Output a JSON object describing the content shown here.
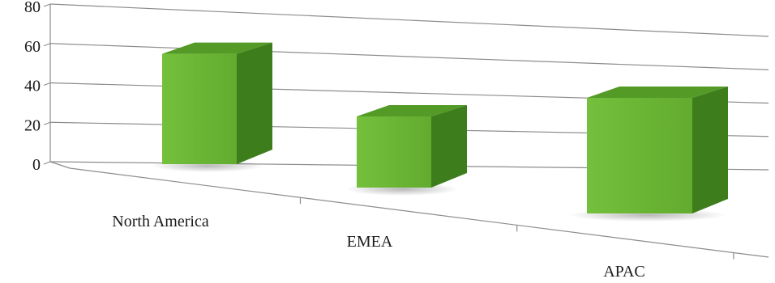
{
  "chart_data": {
    "type": "bar",
    "style": "3d-perspective",
    "categories": [
      "North America",
      "EMEA",
      "APAC"
    ],
    "values": [
      62,
      40,
      65
    ],
    "ylim": [
      0,
      80
    ],
    "yticks": [
      "0",
      "20",
      "40",
      "60",
      "80"
    ],
    "grid": true,
    "legend": "none",
    "title": "",
    "xlabel": "",
    "ylabel": "",
    "colors": {
      "front": "#6ab534",
      "side": "#3e7d1b",
      "top": "#539a27",
      "grid": "#8c8c8c"
    }
  }
}
